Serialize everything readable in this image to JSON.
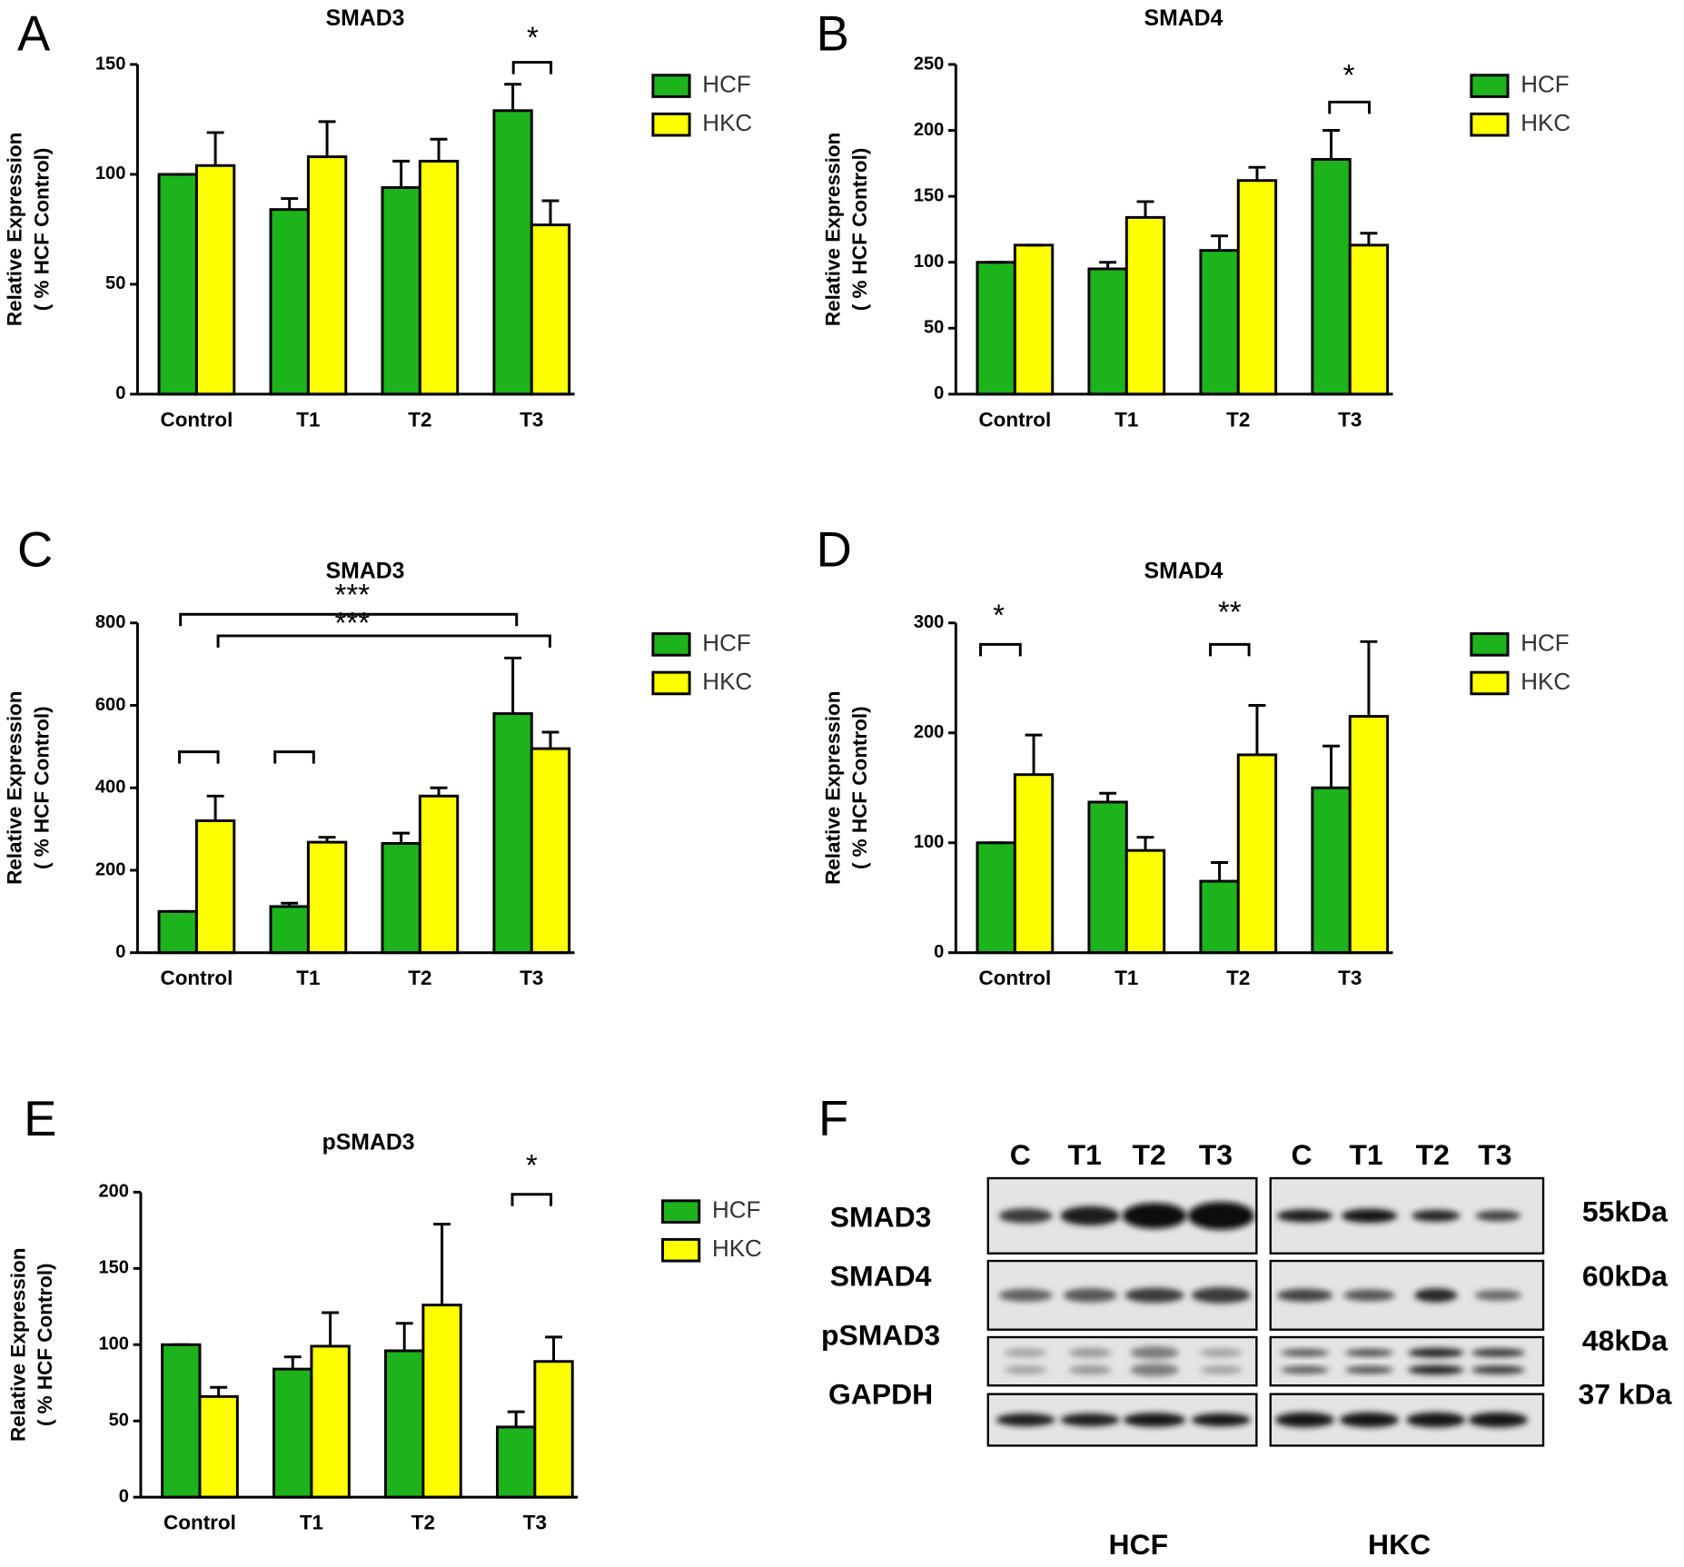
{
  "chart_data": [
    {
      "type": "bar",
      "panel": "A",
      "title": "SMAD3",
      "ylabel": [
        "Relative Expression",
        "( % HCF Control)"
      ],
      "categories": [
        "Control",
        "T1",
        "T2",
        "T3"
      ],
      "series": [
        {
          "name": "HCF",
          "color": "#1db31d",
          "values": [
            100,
            84,
            94,
            129
          ],
          "errors": [
            0,
            5,
            12,
            12
          ]
        },
        {
          "name": "HKC",
          "color": "#ffff00",
          "values": [
            104,
            108,
            106,
            77
          ],
          "errors": [
            15,
            16,
            10,
            11
          ]
        }
      ],
      "ylim": [
        0,
        150
      ],
      "yticks": [
        0,
        50,
        100,
        150
      ],
      "annotations": [
        "*"
      ]
    },
    {
      "type": "bar",
      "panel": "B",
      "title": "SMAD4",
      "ylabel": [
        "Relative Expression",
        "( % HCF Control)"
      ],
      "categories": [
        "Control",
        "T1",
        "T2",
        "T3"
      ],
      "series": [
        {
          "name": "HCF",
          "color": "#1db31d",
          "values": [
            100,
            95,
            109,
            178
          ],
          "errors": [
            0,
            5,
            11,
            22
          ]
        },
        {
          "name": "HKC",
          "color": "#ffff00",
          "values": [
            113,
            134,
            162,
            113
          ],
          "errors": [
            0,
            12,
            10,
            9
          ]
        }
      ],
      "ylim": [
        0,
        250
      ],
      "yticks": [
        0,
        50,
        100,
        150,
        200,
        250
      ],
      "annotations": [
        "*"
      ]
    },
    {
      "type": "bar",
      "panel": "C",
      "title": "SMAD3",
      "ylabel": [
        "Relative Expression",
        "( % HCF Control)"
      ],
      "categories": [
        "Control",
        "T1",
        "T2",
        "T3"
      ],
      "series": [
        {
          "name": "HCF",
          "color": "#1db31d",
          "values": [
            100,
            112,
            265,
            580
          ],
          "errors": [
            0,
            8,
            25,
            135
          ]
        },
        {
          "name": "HKC",
          "color": "#ffff00",
          "values": [
            320,
            268,
            380,
            495
          ],
          "errors": [
            60,
            12,
            20,
            40
          ]
        }
      ],
      "ylim": [
        0,
        800
      ],
      "yticks": [
        0,
        200,
        400,
        600,
        800
      ],
      "annotations": [
        "***",
        "***"
      ]
    },
    {
      "type": "bar",
      "panel": "D",
      "title": "SMAD4",
      "ylabel": [
        "Relative Expression",
        "( % HCF Control)"
      ],
      "categories": [
        "Control",
        "T1",
        "T2",
        "T3"
      ],
      "series": [
        {
          "name": "HCF",
          "color": "#1db31d",
          "values": [
            100,
            137,
            65,
            150
          ],
          "errors": [
            0,
            8,
            17,
            38
          ]
        },
        {
          "name": "HKC",
          "color": "#ffff00",
          "values": [
            162,
            93,
            180,
            215
          ],
          "errors": [
            36,
            12,
            45,
            68
          ]
        }
      ],
      "ylim": [
        0,
        300
      ],
      "yticks": [
        0,
        100,
        200,
        300
      ],
      "annotations": [
        "*",
        "**"
      ]
    },
    {
      "type": "bar",
      "panel": "E",
      "title": "pSMAD3",
      "ylabel": [
        "Relative Expression",
        "( % HCF Control)"
      ],
      "categories": [
        "Control",
        "T1",
        "T2",
        "T3"
      ],
      "series": [
        {
          "name": "HCF",
          "color": "#1db31d",
          "values": [
            100,
            84,
            96,
            46
          ],
          "errors": [
            0,
            8,
            18,
            10
          ]
        },
        {
          "name": "HKC",
          "color": "#ffff00",
          "values": [
            66,
            99,
            126,
            89
          ],
          "errors": [
            6,
            22,
            53,
            16
          ]
        }
      ],
      "ylim": [
        0,
        200
      ],
      "yticks": [
        0,
        50,
        100,
        150,
        200
      ],
      "annotations": [
        "*"
      ]
    }
  ],
  "blot": {
    "panel": "F",
    "lanes": [
      "C",
      "T1",
      "T2",
      "T3"
    ],
    "groups": [
      "HCF",
      "HKC"
    ],
    "rows": [
      {
        "name": "SMAD3",
        "size": "55kDa"
      },
      {
        "name": "SMAD4",
        "size": "60kDa"
      },
      {
        "name": "pSMAD3",
        "size": "48kDa"
      },
      {
        "name": "GAPDH",
        "size": "37 kDa"
      }
    ]
  }
}
